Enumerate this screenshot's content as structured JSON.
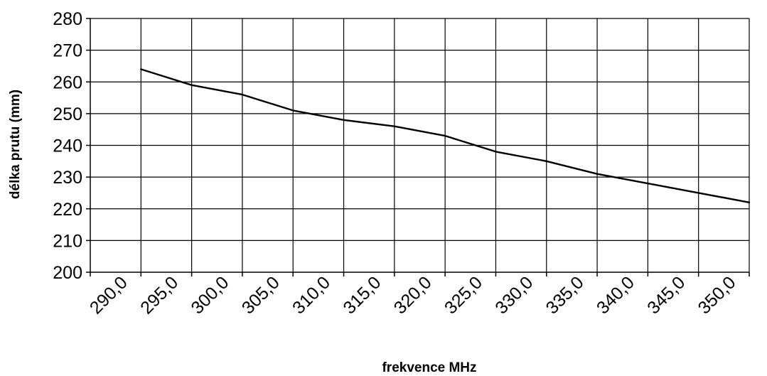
{
  "chart_data": {
    "type": "line",
    "title": "",
    "xlabel": "frekvence MHz",
    "ylabel": "délka prutu (mm)",
    "x_tick_labels": [
      "290,0",
      "295,0",
      "300,0",
      "305,0",
      "310,0",
      "315,0",
      "320,0",
      "325,0",
      "330,0",
      "335,0",
      "340,0",
      "345,0",
      "350,0"
    ],
    "y_tick_labels": [
      "200",
      "210",
      "220",
      "230",
      "240",
      "250",
      "260",
      "270",
      "280"
    ],
    "xlim": [
      287.5,
      352.5
    ],
    "ylim": [
      200,
      280
    ],
    "grid": true,
    "legend": "none",
    "series": [
      {
        "color": "#000000",
        "x": [
          292.5,
          297.5,
          302.5,
          307.5,
          312.5,
          317.5,
          322.5,
          327.5,
          332.5,
          337.5,
          342.5,
          347.5,
          352.5
        ],
        "values": [
          264,
          259,
          256,
          251,
          248,
          246,
          243,
          238,
          235,
          231,
          228,
          225,
          222
        ]
      }
    ]
  }
}
